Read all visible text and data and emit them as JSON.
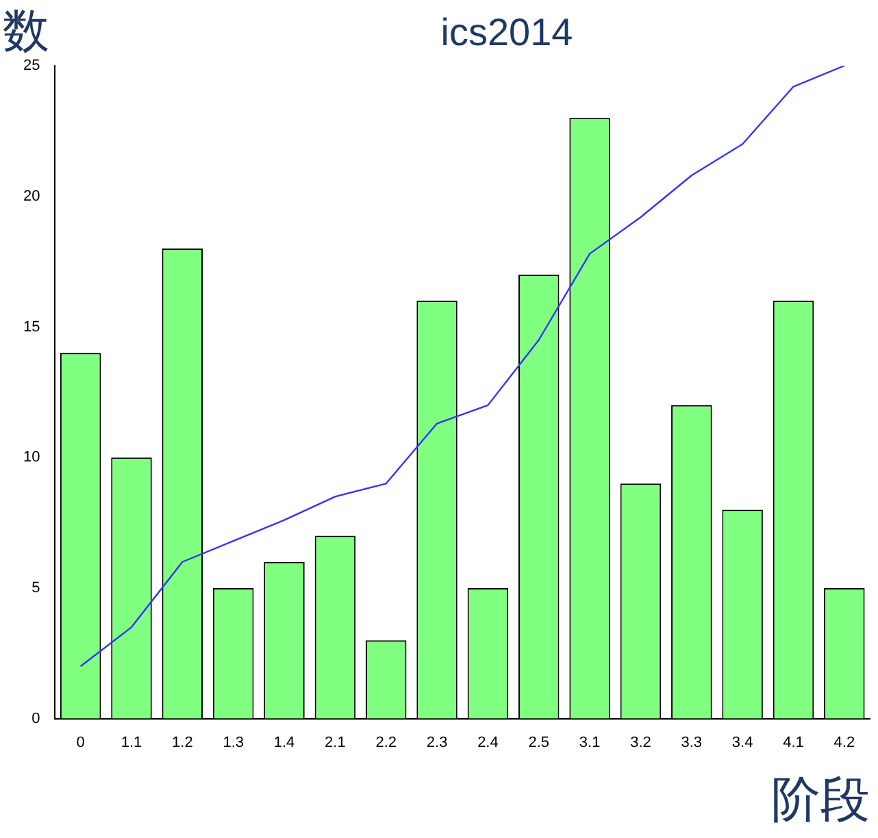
{
  "chart_data": {
    "type": "bar",
    "title": "ics2014",
    "xlabel": "阶段",
    "ylabel": "数",
    "categories": [
      "0",
      "1.1",
      "1.2",
      "1.3",
      "1.4",
      "2.1",
      "2.2",
      "2.3",
      "2.4",
      "2.5",
      "3.1",
      "3.2",
      "3.3",
      "3.4",
      "4.1",
      "4.2"
    ],
    "series": [
      {
        "color": "#80ff80",
        "values": [
          14,
          10,
          18,
          5,
          6,
          7,
          3,
          16,
          5,
          17,
          23,
          9,
          12,
          8,
          16,
          5
        ]
      },
      {
        "type": "line",
        "color": "#3333ff",
        "values": [
          2,
          3.5,
          6,
          6.8,
          7.6,
          8.5,
          9,
          11.3,
          12,
          14.5,
          17.8,
          19.2,
          20.8,
          22,
          24.2,
          25
        ]
      }
    ],
    "ylim": [
      0,
      25
    ],
    "yticks": [
      0,
      5,
      10,
      15,
      20,
      25
    ],
    "grid": false,
    "legend": false,
    "marker": "none"
  }
}
